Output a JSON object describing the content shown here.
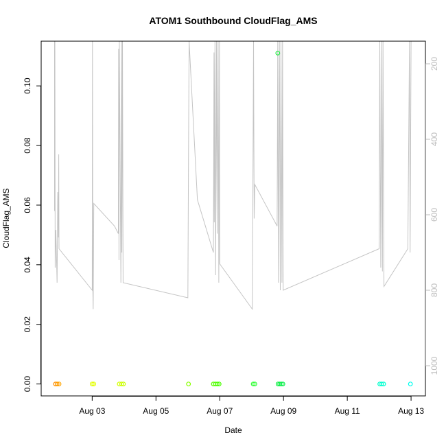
{
  "chart_data": {
    "type": "scatter",
    "title": "ATOM1 Southbound CloudFlag_AMS",
    "xlabel": "Date",
    "ylabel": "CloudFlag_AMS",
    "x_tick_labels": [
      "Aug 03",
      "Aug 05",
      "Aug 07",
      "Aug 09",
      "Aug 11",
      "Aug 13"
    ],
    "x_ticks_day": [
      3,
      5,
      7,
      9,
      11,
      13
    ],
    "xlim_day": [
      1.4,
      13.45
    ],
    "ylim": [
      -0.004,
      0.115
    ],
    "y_ticks": [
      0.0,
      0.02,
      0.04,
      0.06,
      0.08,
      0.1
    ],
    "y_tick_labels": [
      "0.00",
      "0.02",
      "0.04",
      "0.06",
      "0.08",
      "0.10"
    ],
    "right_axis": {
      "tick_labels": [
        "200",
        "400",
        "600",
        "800",
        "1000"
      ],
      "ticks": [
        200,
        400,
        600,
        800,
        1000
      ],
      "ylim": [
        1080,
        140
      ],
      "color": "#bdbdbd"
    },
    "points": [
      {
        "day": 1.85,
        "y": 0.0,
        "color": "#ff8c00"
      },
      {
        "day": 1.9,
        "y": 0.0,
        "color": "#ff9900"
      },
      {
        "day": 1.96,
        "y": 0.0,
        "color": "#ffa500"
      },
      {
        "day": 3.0,
        "y": 0.0,
        "color": "#e0ff00"
      },
      {
        "day": 3.05,
        "y": 0.0,
        "color": "#e6ff00"
      },
      {
        "day": 3.85,
        "y": 0.0,
        "color": "#d4ff00"
      },
      {
        "day": 3.92,
        "y": 0.0,
        "color": "#ccff00"
      },
      {
        "day": 3.98,
        "y": 0.0,
        "color": "#c8ff00"
      },
      {
        "day": 6.02,
        "y": 0.0,
        "color": "#88ff00"
      },
      {
        "day": 6.8,
        "y": 0.0,
        "color": "#55ff00"
      },
      {
        "day": 6.86,
        "y": 0.0,
        "color": "#50ff00"
      },
      {
        "day": 6.92,
        "y": 0.0,
        "color": "#4dff00"
      },
      {
        "day": 6.98,
        "y": 0.0,
        "color": "#48ff00"
      },
      {
        "day": 8.05,
        "y": 0.0,
        "color": "#33ff33"
      },
      {
        "day": 8.1,
        "y": 0.0,
        "color": "#30ff38"
      },
      {
        "day": 8.82,
        "y": 0.111,
        "color": "#22ee44"
      },
      {
        "day": 8.83,
        "y": 0.0,
        "color": "#11ee44"
      },
      {
        "day": 8.88,
        "y": 0.0,
        "color": "#10f048"
      },
      {
        "day": 8.93,
        "y": 0.0,
        "color": "#0ff04c"
      },
      {
        "day": 8.98,
        "y": 0.0,
        "color": "#0ef050"
      },
      {
        "day": 12.02,
        "y": 0.0,
        "color": "#00ffcc"
      },
      {
        "day": 12.08,
        "y": 0.0,
        "color": "#00ffcc"
      },
      {
        "day": 12.14,
        "y": 0.0,
        "color": "#00ffd2"
      },
      {
        "day": 12.98,
        "y": 0.0,
        "color": "#00ffee"
      }
    ],
    "altitude_track": [
      [
        1.82,
        140
      ],
      [
        1.82,
        590
      ],
      [
        1.83,
        140
      ],
      [
        1.84,
        740
      ],
      [
        1.86,
        640
      ],
      [
        1.9,
        780
      ],
      [
        1.92,
        540
      ],
      [
        1.94,
        660
      ],
      [
        1.95,
        440
      ],
      [
        1.96,
        690
      ],
      [
        3.0,
        800
      ],
      [
        3.01,
        140
      ],
      [
        3.02,
        800
      ],
      [
        3.03,
        850
      ],
      [
        3.05,
        570
      ],
      [
        3.7,
        630
      ],
      [
        3.82,
        650
      ],
      [
        3.83,
        160
      ],
      [
        3.84,
        720
      ],
      [
        3.85,
        140
      ],
      [
        3.9,
        780
      ],
      [
        3.92,
        140
      ],
      [
        3.93,
        700
      ],
      [
        3.95,
        140
      ],
      [
        3.97,
        780
      ],
      [
        6.0,
        820
      ],
      [
        6.02,
        460
      ],
      [
        6.04,
        140
      ],
      [
        6.3,
        560
      ],
      [
        6.8,
        700
      ],
      [
        6.82,
        170
      ],
      [
        6.83,
        620
      ],
      [
        6.85,
        140
      ],
      [
        6.87,
        760
      ],
      [
        6.9,
        140
      ],
      [
        6.92,
        650
      ],
      [
        6.95,
        140
      ],
      [
        6.97,
        780
      ],
      [
        6.99,
        140
      ],
      [
        7.0,
        730
      ],
      [
        8.02,
        850
      ],
      [
        8.04,
        520
      ],
      [
        8.06,
        140
      ],
      [
        8.08,
        610
      ],
      [
        8.1,
        520
      ],
      [
        8.8,
        630
      ],
      [
        8.82,
        140
      ],
      [
        8.84,
        780
      ],
      [
        8.87,
        140
      ],
      [
        8.9,
        800
      ],
      [
        8.92,
        140
      ],
      [
        8.95,
        780
      ],
      [
        8.97,
        140
      ],
      [
        8.99,
        800
      ],
      [
        12.0,
        690
      ],
      [
        12.02,
        140
      ],
      [
        12.05,
        740
      ],
      [
        12.08,
        140
      ],
      [
        12.1,
        750
      ],
      [
        12.12,
        140
      ],
      [
        12.15,
        790
      ],
      [
        12.9,
        690
      ],
      [
        12.95,
        140
      ],
      [
        12.97,
        700
      ],
      [
        13.0,
        140
      ]
    ]
  }
}
